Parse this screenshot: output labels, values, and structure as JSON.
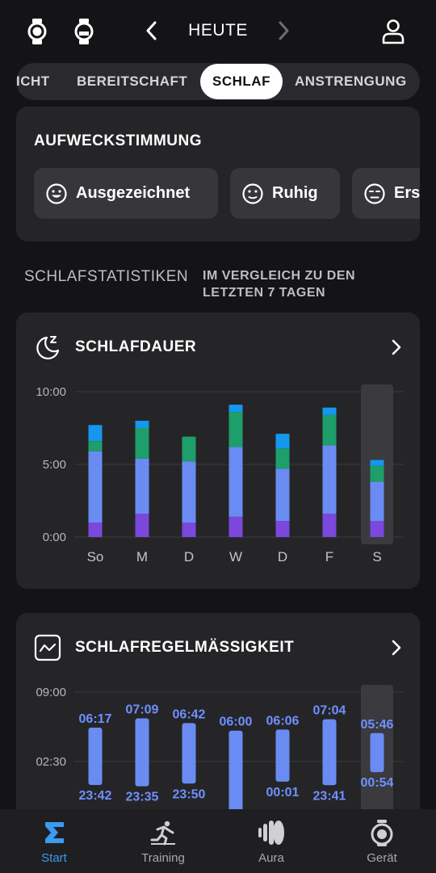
{
  "header": {
    "day_label": "HEUTE"
  },
  "tabs": [
    {
      "label": "ICHT"
    },
    {
      "label": "BEREITSCHAFT"
    },
    {
      "label": "SCHLAF",
      "active": true
    },
    {
      "label": "ANSTRENGUNG"
    }
  ],
  "wake_mood": {
    "title": "AUFWECKSTIMMUNG",
    "options": [
      {
        "label": "Ausgezeichnet",
        "icon": "smile-icon"
      },
      {
        "label": "Ruhig",
        "icon": "neutral-face-icon"
      },
      {
        "label": "Ers",
        "icon": "tired-face-icon"
      }
    ]
  },
  "stats": {
    "heading": "SCHLAFSTATISTIKEN",
    "comparison": "IM VERGLEICH ZU DEN LETZTEN 7 TAGEN"
  },
  "colors": {
    "deep": "#7b47dd",
    "light": "#6a8cf2",
    "rem": "#1e9e6a",
    "awake": "#1597ee",
    "regularity_bar": "#6a8cf2",
    "accent": "#3a9bf2"
  },
  "chart_data": [
    {
      "type": "bar",
      "title": "SCHLAFDAUER",
      "categories": [
        "So",
        "M",
        "D",
        "W",
        "D",
        "F",
        "S"
      ],
      "y_ticks": [
        "0:00",
        "5:00",
        "10:00"
      ],
      "ylim": [
        0,
        10
      ],
      "stacked": true,
      "highlighted_category_index": 6,
      "series": [
        {
          "values": [
            1.0,
            1.6,
            1.0,
            1.4,
            1.1,
            1.6,
            1.1
          ]
        },
        {
          "values": [
            4.9,
            3.8,
            4.2,
            4.8,
            3.6,
            4.7,
            2.7
          ]
        },
        {
          "values": [
            0.7,
            2.1,
            1.7,
            2.4,
            1.4,
            2.1,
            1.1
          ]
        },
        {
          "values": [
            1.1,
            0.5,
            0.0,
            0.5,
            1.0,
            0.5,
            0.4
          ]
        }
      ]
    },
    {
      "type": "bar",
      "title": "SCHLAFREGELMÄSSIGKEIT",
      "categories": [
        "So",
        "M",
        "D",
        "W",
        "D",
        "F",
        "S"
      ],
      "y_ticks": [
        "02:30",
        "09:00"
      ],
      "highlighted_category_index": 6,
      "wake_times": [
        "06:17",
        "07:09",
        "06:42",
        "06:00",
        "06:06",
        "07:04",
        "05:46"
      ],
      "bed_times": [
        "23:42",
        "23:35",
        "23:50",
        "",
        "00:01",
        "23:41",
        "00:54"
      ]
    }
  ],
  "bottom_nav": [
    {
      "label": "Start",
      "icon": "sigma-icon",
      "active": true
    },
    {
      "label": "Training",
      "icon": "running-person-icon"
    },
    {
      "label": "Aura",
      "icon": "aura-icon"
    },
    {
      "label": "Gerät",
      "icon": "stopwatch-icon"
    }
  ]
}
